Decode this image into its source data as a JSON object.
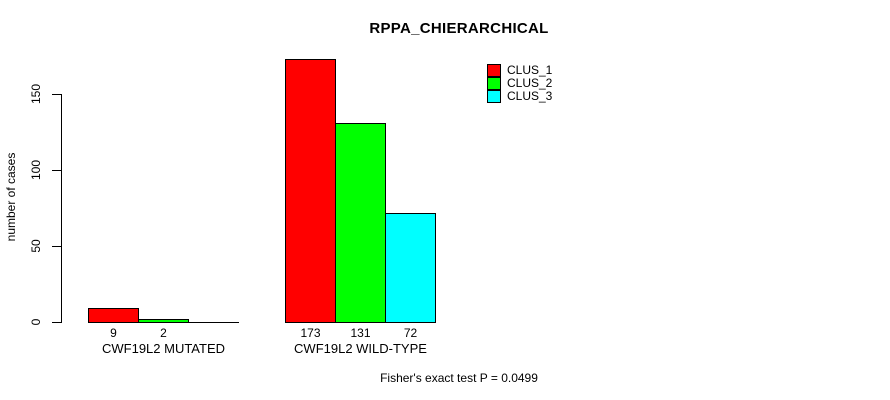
{
  "chart_data": {
    "type": "bar",
    "title": "RPPA_CHIERARCHICAL",
    "ylabel": "number of cases",
    "xlabel": "",
    "yticks": [
      0,
      50,
      100,
      150
    ],
    "ylim": [
      0,
      175
    ],
    "grid": false,
    "legend_position": "top-right",
    "categories": [
      "CWF19L2 MUTATED",
      "CWF19L2 WILD-TYPE"
    ],
    "series": [
      {
        "name": "CLUS_1",
        "color": "#ff0000",
        "values": [
          9,
          173
        ]
      },
      {
        "name": "CLUS_2",
        "color": "#00ff00",
        "values": [
          2,
          131
        ]
      },
      {
        "name": "CLUS_3",
        "color": "#00ffff",
        "values": [
          0,
          72
        ]
      }
    ],
    "bar_labels": [
      [
        "9",
        "2",
        ""
      ],
      [
        "173",
        "131",
        "72"
      ]
    ],
    "annotation": "Fisher's exact test P = 0.0499"
  }
}
